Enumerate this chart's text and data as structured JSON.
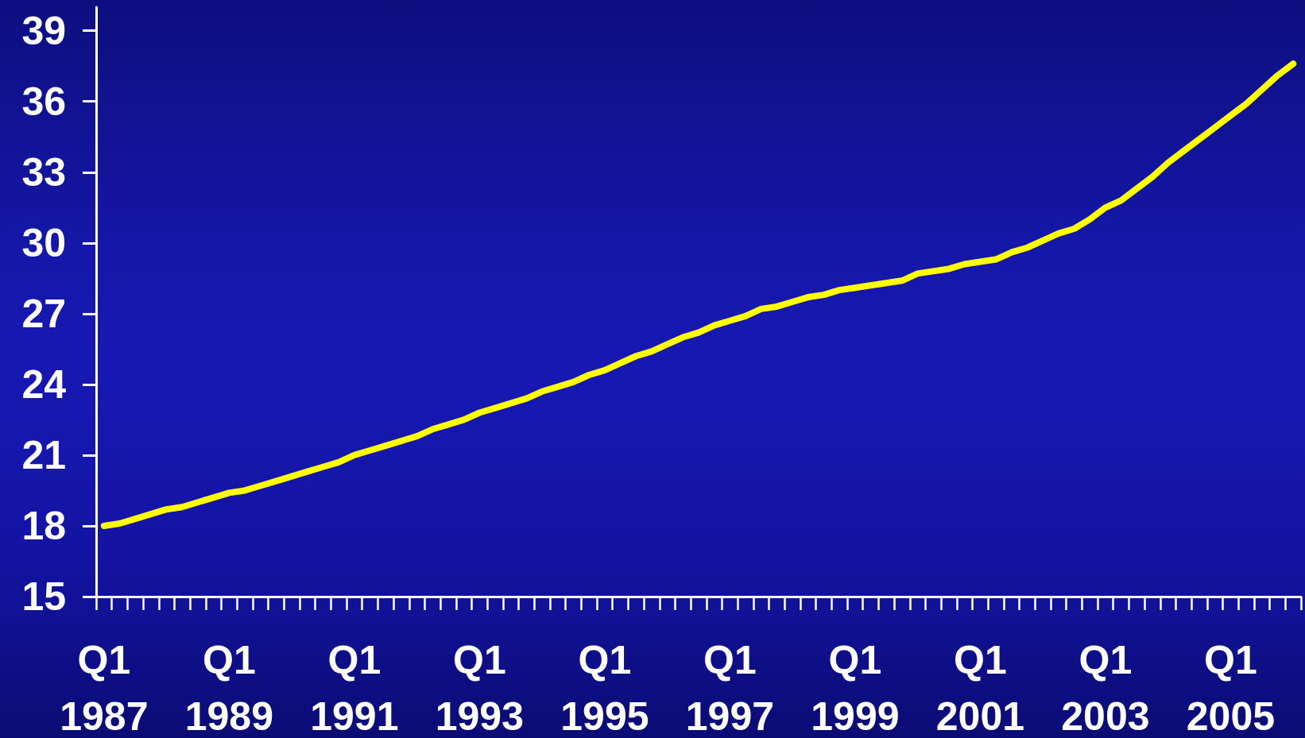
{
  "chart_data": {
    "type": "line",
    "categories": [
      "Q1 1987",
      null,
      null,
      null,
      null,
      null,
      null,
      null,
      "Q1 1989",
      null,
      null,
      null,
      null,
      null,
      null,
      null,
      "Q1 1991",
      null,
      null,
      null,
      null,
      null,
      null,
      null,
      "Q1 1993",
      null,
      null,
      null,
      null,
      null,
      null,
      null,
      "Q1 1995",
      null,
      null,
      null,
      null,
      null,
      null,
      null,
      "Q1 1997",
      null,
      null,
      null,
      null,
      null,
      null,
      null,
      "Q1 1999",
      null,
      null,
      null,
      null,
      null,
      null,
      null,
      "Q1 2001",
      null,
      null,
      null,
      null,
      null,
      null,
      null,
      "Q1 2003",
      null,
      null,
      null,
      null,
      null,
      null,
      null,
      "Q1 2005",
      null,
      null,
      null,
      null
    ],
    "values": [
      18.0,
      18.1,
      18.3,
      18.5,
      18.7,
      18.8,
      19.0,
      19.2,
      19.4,
      19.5,
      19.7,
      19.9,
      20.1,
      20.3,
      20.5,
      20.7,
      21.0,
      21.2,
      21.4,
      21.6,
      21.8,
      22.1,
      22.3,
      22.5,
      22.8,
      23.0,
      23.2,
      23.4,
      23.7,
      23.9,
      24.1,
      24.4,
      24.6,
      24.9,
      25.2,
      25.4,
      25.7,
      26.0,
      26.2,
      26.5,
      26.7,
      26.9,
      27.2,
      27.3,
      27.5,
      27.7,
      27.8,
      28.0,
      28.1,
      28.2,
      28.3,
      28.4,
      28.7,
      28.8,
      28.9,
      29.1,
      29.2,
      29.3,
      29.6,
      29.8,
      30.1,
      30.4,
      30.6,
      31.0,
      31.5,
      31.8,
      32.3,
      32.8,
      33.4,
      33.9,
      34.4,
      34.9,
      35.4,
      35.9,
      36.5,
      37.1,
      37.6
    ],
    "color": "#ffff00",
    "ylim": [
      15,
      40
    ],
    "yticks": [
      15,
      18,
      21,
      24,
      27,
      30,
      33,
      36,
      39
    ],
    "grid": false,
    "marker": "none",
    "line_style": "solid"
  }
}
